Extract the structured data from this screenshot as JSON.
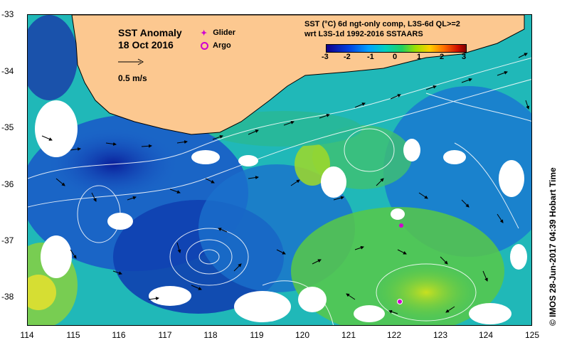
{
  "map": {
    "title_line1": "SST Anomaly",
    "title_line2": "18 Oct 2016",
    "scale_label": "0.5 m/s",
    "legend_glider": "Glider",
    "legend_argo": "Argo",
    "product_line1": "SST (°C) 6d ngt-only comp, L3S-6d QL>=2",
    "product_line2": "wrt L3S-1d 1992-2016 SSTAARS",
    "colorbar_ticks": [
      "-3",
      "-2",
      "-1",
      "0",
      "1",
      "2",
      "3"
    ],
    "y_ticks": [
      "-33",
      "-34",
      "-35",
      "-36",
      "-37",
      "-38"
    ],
    "x_ticks": [
      "114",
      "115",
      "116",
      "117",
      "118",
      "119",
      "120",
      "121",
      "122",
      "123",
      "124",
      "125"
    ],
    "credit": "© IMOS 28-Jun-2017 04:39 Hobart Time",
    "colors": {
      "land": "#fcc890",
      "cold": "#0a2aa8",
      "cool": "#1c8fd8",
      "neutral": "#22c8b0",
      "warm": "#7cd030",
      "glider": "#d000d0"
    }
  }
}
